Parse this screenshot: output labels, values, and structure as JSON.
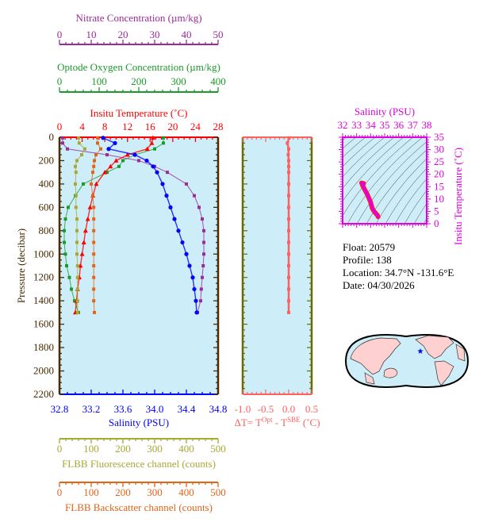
{
  "colors": {
    "nitrate": "#9b2a9b",
    "oxygen": "#1a9a2a",
    "temperature": "#ff0000",
    "salinity": "#0000ff",
    "fluorescence": "#a8a832",
    "backscatter": "#e0641a",
    "pressure_axis": "#4a2a00",
    "delta_t": "#ff6060",
    "ts": "#e000e0",
    "plot_bg": "#cdeef8",
    "land": "#ffd0d0"
  },
  "info": {
    "float": "Float:  20579",
    "profile": "Profile:  138",
    "location": "Location:  34.7°N  -131.6°E",
    "date": "Date:  04/30/2026"
  },
  "chart_data": [
    {
      "type": "line",
      "title": "",
      "ylabel": "Pressure (decibar)",
      "ylim": [
        2200,
        0
      ],
      "yticks": [
        "0",
        "200",
        "400",
        "600",
        "800",
        "1000",
        "1200",
        "1400",
        "1600",
        "1800",
        "2000",
        "2200"
      ],
      "grid": false,
      "axes": {
        "nitrate": {
          "label": "Nitrate Concentration (µm/kg)",
          "range": [
            0,
            50
          ],
          "ticks": [
            "0",
            "10",
            "20",
            "30",
            "40",
            "50"
          ]
        },
        "oxygen": {
          "label": "Optode Oxygen Concentration (µm/kg)",
          "range": [
            0,
            400
          ],
          "ticks": [
            "0",
            "100",
            "200",
            "300",
            "400"
          ]
        },
        "temperature": {
          "label": "Insitu Temperature (˚C)",
          "range": [
            0,
            28
          ],
          "ticks": [
            "0",
            "4",
            "8",
            "12",
            "16",
            "20",
            "24",
            "28"
          ]
        },
        "salinity": {
          "label": "Salinity (PSU)",
          "range": [
            32.8,
            34.8
          ],
          "ticks": [
            "32.8",
            "33.2",
            "33.6",
            "34.0",
            "34.4",
            "34.8"
          ]
        },
        "fluorescence": {
          "label": "FLBB Fluorescence channel (counts)",
          "range": [
            0,
            500
          ],
          "ticks": [
            "0",
            "100",
            "200",
            "300",
            "400",
            "500"
          ]
        },
        "backscatter": {
          "label": "FLBB Backscatter channel (counts)",
          "range": [
            0,
            500
          ],
          "ticks": [
            "0",
            "100",
            "200",
            "300",
            "400",
            "500"
          ]
        }
      },
      "pressure": [
        5,
        50,
        100,
        150,
        200,
        250,
        300,
        400,
        500,
        600,
        700,
        800,
        900,
        1000,
        1100,
        1200,
        1300,
        1400,
        1500
      ],
      "series": [
        {
          "key": "nitrate",
          "marker": "square",
          "values": [
            1,
            1,
            2.5,
            15,
            25,
            30,
            34,
            40,
            42.5,
            44,
            45,
            45.5,
            45.5,
            45.5,
            45.3,
            45,
            44.7,
            44.5,
            43.5
          ]
        },
        {
          "key": "oxygen",
          "marker": "square",
          "values": [
            262,
            262,
            240,
            190,
            160,
            150,
            120,
            60,
            40,
            22,
            15,
            12,
            12,
            15,
            18,
            25,
            30,
            38,
            48
          ]
        },
        {
          "key": "temperature",
          "marker": "triangle",
          "values": [
            16.5,
            16.3,
            15.5,
            12,
            10,
            9,
            8,
            6.5,
            5.9,
            5.4,
            5,
            4.6,
            4.3,
            4.0,
            3.7,
            3.5,
            3.2,
            3.0,
            2.8
          ]
        },
        {
          "key": "salinity",
          "marker": "circle",
          "values": [
            33.35,
            33.5,
            33.42,
            33.75,
            33.9,
            33.98,
            34.03,
            34.1,
            34.15,
            34.2,
            34.25,
            34.3,
            34.35,
            34.4,
            34.44,
            34.48,
            34.5,
            34.52,
            34.53
          ]
        },
        {
          "key": "fluorescence",
          "marker": "square",
          "values": [
            60,
            62,
            80,
            70,
            55,
            50,
            52,
            50,
            52,
            52,
            55,
            55,
            55,
            55,
            57,
            57,
            57,
            57,
            57
          ]
        },
        {
          "key": "backscatter",
          "marker": "square",
          "values": [
            120,
            120,
            130,
            115,
            110,
            108,
            105,
            100,
            105,
            108,
            108,
            108,
            108,
            108,
            108,
            108,
            108,
            108,
            110
          ]
        }
      ]
    },
    {
      "type": "line",
      "xlabel": "ΔT= T^Opt - T^SBE (˚C)",
      "xlabel_parts": {
        "a": "ΔT= T",
        "sup1": "Opt",
        "b": " - T",
        "sup2": "SBE",
        "c": " (˚C)"
      },
      "xlim": [
        -1.0,
        0.5
      ],
      "xticks": [
        "-1.0",
        "-0.5",
        "0.0",
        "0.5"
      ],
      "ylim": [
        2200,
        0
      ],
      "pressure": [
        5,
        50,
        100,
        150,
        200,
        250,
        300,
        400,
        500,
        600,
        700,
        800,
        900,
        1000,
        1100,
        1200,
        1300,
        1400,
        1500
      ],
      "values": [
        0.01,
        -0.03,
        0.0,
        -0.01,
        0.0,
        0.0,
        0.0,
        0.0,
        0.0,
        0.0,
        0.0,
        0.0,
        0.0,
        0.0,
        0.0,
        0.0,
        0.0,
        0.0,
        0.0
      ]
    },
    {
      "type": "line",
      "title": "",
      "xlabel": "Salinity (PSU)",
      "ylabel": "Insitu Temperature (˚C)",
      "xlim": [
        32,
        38
      ],
      "ylim": [
        0,
        35
      ],
      "xticks": [
        "32",
        "33",
        "34",
        "35",
        "36",
        "37",
        "38"
      ],
      "yticks": [
        "0",
        "5",
        "10",
        "15",
        "20",
        "25",
        "30",
        "35"
      ],
      "salinity": [
        33.35,
        33.5,
        33.42,
        33.75,
        33.9,
        33.98,
        34.03,
        34.1,
        34.15,
        34.2,
        34.25,
        34.3,
        34.35,
        34.4,
        34.44,
        34.48,
        34.5,
        34.52,
        34.53
      ],
      "temperature": [
        16.5,
        16.3,
        15.5,
        12,
        10,
        9,
        8,
        6.5,
        5.9,
        5.4,
        5,
        4.6,
        4.3,
        4.0,
        3.7,
        3.5,
        3.2,
        3.0,
        2.8
      ]
    }
  ]
}
